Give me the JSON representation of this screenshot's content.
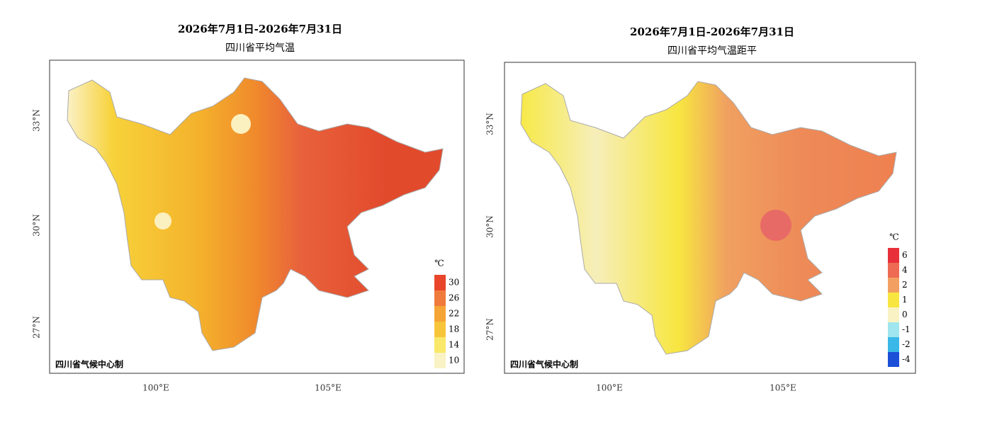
{
  "maps": [
    {
      "title": "2026年7月1日-2026年7月31日",
      "subtitle": "四川省平均气温",
      "credit": "四川省气候中心制",
      "unit": "℃",
      "lat_labels": [
        "33°N",
        "30°N",
        "27°N"
      ],
      "lon_labels": [
        "100°E",
        "105°E"
      ],
      "legend": [
        {
          "value": 30,
          "color": "#e8452a"
        },
        {
          "value": 26,
          "color": "#f07a3c"
        },
        {
          "value": 22,
          "color": "#f5a436"
        },
        {
          "value": 18,
          "color": "#f8c53a"
        },
        {
          "value": 14,
          "color": "#f9e86a"
        },
        {
          "value": 10,
          "color": "#f8f2c4"
        }
      ]
    },
    {
      "title": "2026年7月1日-2026年7月31日",
      "subtitle": "四川省平均气温距平",
      "credit": "四川省气候中心制",
      "unit": "℃",
      "lat_labels": [
        "33°N",
        "30°N",
        "27°N"
      ],
      "lon_labels": [
        "100°E",
        "105°E"
      ],
      "legend": [
        {
          "value": 6,
          "color": "#e8303a"
        },
        {
          "value": 4,
          "color": "#ee6a52"
        },
        {
          "value": 2,
          "color": "#f2a062"
        },
        {
          "value": 1,
          "color": "#f8e640"
        },
        {
          "value": 0,
          "color": "#f8f2c4"
        },
        {
          "value": -1,
          "color": "#9fe6ee"
        },
        {
          "value": -2,
          "color": "#3ab8e8"
        },
        {
          "value": -4,
          "color": "#1b4fd8"
        }
      ]
    }
  ]
}
